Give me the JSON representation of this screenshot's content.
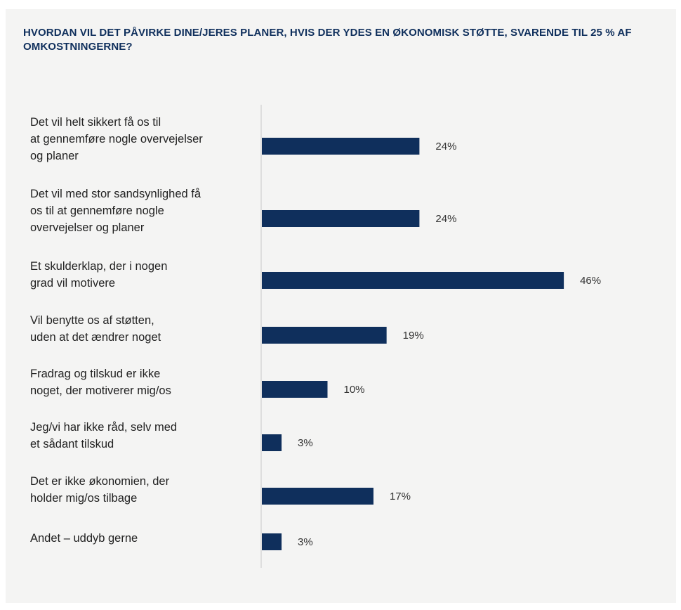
{
  "chart_data": {
    "type": "bar",
    "orientation": "horizontal",
    "title": "HVORDAN VIL DET PÅVIRKE DINE/JERES PLANER, HVIS DER YDES EN ØKONOMISK STØTTE, SVARENDE TIL 25 % AF OMKOSTNINGERNE?",
    "categories": [
      "Det vil helt sikkert få os til at gennemføre nogle overvejelser og planer",
      "Det vil med stor sandsynlighed få os til at gennemføre nogle overvejelser og planer",
      "Et skulderklap, der i nogen grad vil motivere",
      "Vil benytte os af støtten, uden at det ændrer noget",
      "Fradrag og tilskud er ikke noget, der motiverer mig/os",
      "Jeg/vi har ikke råd, selv med et sådant tilskud",
      "Det er ikke økonomien, der holder mig/os tilbage",
      "Andet – uddyb gerne"
    ],
    "values": [
      24,
      24,
      46,
      19,
      10,
      3,
      17,
      3
    ],
    "value_labels": [
      "24%",
      "24%",
      "46%",
      "19%",
      "10%",
      "3%",
      "17%",
      "3%"
    ],
    "unit": "%",
    "xlim": [
      0,
      100
    ],
    "grid": false,
    "legend": "none",
    "bar_color": "#0f2f5c",
    "title_color": "#0f2f5c",
    "background_color": "#f4f4f3"
  }
}
